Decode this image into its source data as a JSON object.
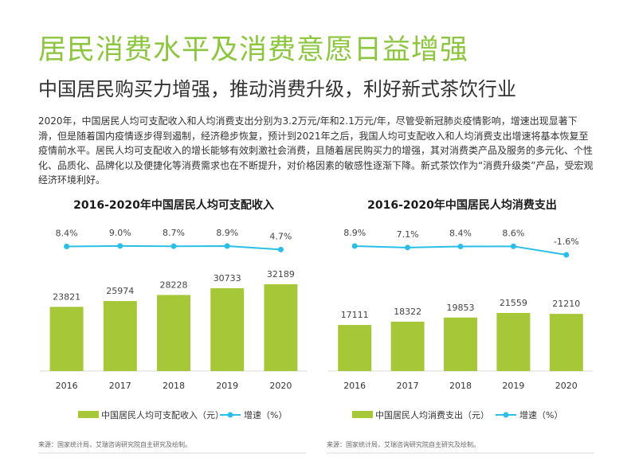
{
  "header": {
    "title": "居民消费水平及消费意愿日益增强",
    "subtitle": "中国居民购买力增强，推动消费升级，利好新式茶饮行业"
  },
  "body_text": "2020年，中国居民人均可支配收入和人均消费支出分别为3.2万元/年和2.1万元/年，尽管受新冠肺炎疫情影响，增速出现显著下滑，但是随着国内疫情逐步得到遏制，经济稳步恢复，预计到2021年之后，我国人均可支配收入和人均消费支出增速将基本恢复至疫情前水平。居民人均可支配收入的增长能够有效刺激社会消费，且随着居民购买力的增强，其对消费类产品及服务的多元化、个性化、品质化、品牌化以及便捷化等消费需求也在不断提升，对价格因素的敏感性逐渐下降。新式茶饮作为“消费升级类”产品，受宏观经济环境利好。",
  "colors": {
    "bar": "#a6c838",
    "line": "#2bbfe8",
    "title": "#8cc63f",
    "axis": "#d9d9d9"
  },
  "chart_data": [
    {
      "type": "bar",
      "title": "2016-2020年中国居民人均可支配收入",
      "categories": [
        "2016",
        "2017",
        "2018",
        "2019",
        "2020"
      ],
      "series": [
        {
          "name": "中国居民人均可支配收入（元）",
          "type": "bar",
          "values": [
            23821,
            25974,
            28228,
            30733,
            32189
          ]
        },
        {
          "name": "增速（%）",
          "type": "line",
          "values": [
            8.4,
            9.0,
            8.7,
            8.9,
            4.7
          ],
          "labels": [
            "8.4%",
            "9.0%",
            "8.7%",
            "8.9%",
            "4.7%"
          ]
        }
      ],
      "source": "来源：国家统计局，艾瑞咨询研究院自主研究及绘制。"
    },
    {
      "type": "bar",
      "title": "2016-2020年中国居民人均消费支出",
      "categories": [
        "2016",
        "2017",
        "2018",
        "2019",
        "2020"
      ],
      "series": [
        {
          "name": "中国居民人均消费支出（元）",
          "type": "bar",
          "values": [
            17111,
            18322,
            19853,
            21559,
            21210
          ]
        },
        {
          "name": "增速（%）",
          "type": "line",
          "values": [
            8.9,
            7.1,
            8.4,
            8.6,
            -1.6
          ],
          "labels": [
            "8.9%",
            "7.1%",
            "8.4%",
            "8.6%",
            "-1.6%"
          ]
        }
      ],
      "source": "来源：国家统计局，艾瑞咨询研究院自主研究及绘制。"
    }
  ]
}
